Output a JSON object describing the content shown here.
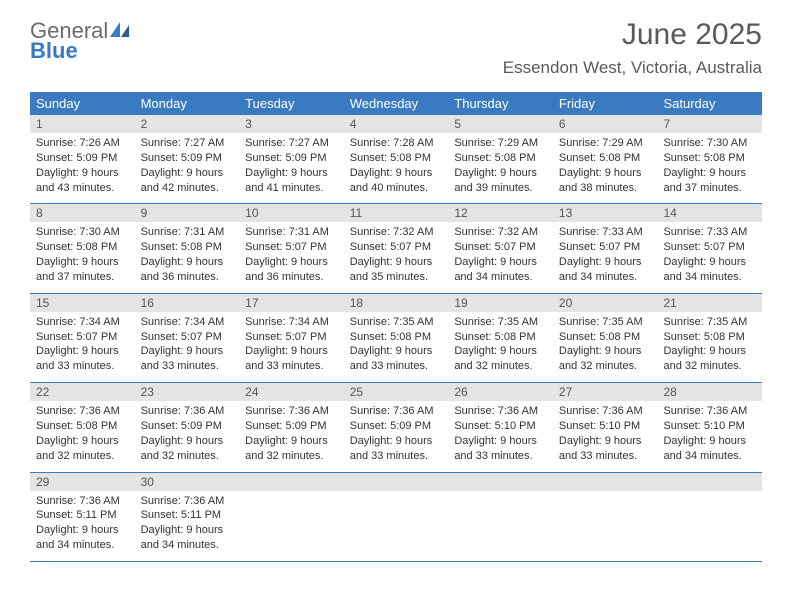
{
  "logo": {
    "text_general": "General",
    "text_blue": "Blue"
  },
  "header": {
    "month_title": "June 2025",
    "location": "Essendon West, Victoria, Australia"
  },
  "colors": {
    "header_bg": "#3a7ac0",
    "daynum_bg": "#e4e4e4",
    "row_border": "#3a7ac0",
    "text": "#333333",
    "muted": "#6b6b6b",
    "logo_blue": "#3a7ac0",
    "background": "#ffffff"
  },
  "typography": {
    "month_title_size": 30,
    "location_size": 17,
    "weekday_size": 13,
    "daynum_size": 12,
    "body_size": 11
  },
  "weekdays": [
    "Sunday",
    "Monday",
    "Tuesday",
    "Wednesday",
    "Thursday",
    "Friday",
    "Saturday"
  ],
  "weeks": [
    {
      "nums": [
        "1",
        "2",
        "3",
        "4",
        "5",
        "6",
        "7"
      ],
      "cells": [
        {
          "sunrise": "Sunrise: 7:26 AM",
          "sunset": "Sunset: 5:09 PM",
          "daylight": "Daylight: 9 hours and 43 minutes."
        },
        {
          "sunrise": "Sunrise: 7:27 AM",
          "sunset": "Sunset: 5:09 PM",
          "daylight": "Daylight: 9 hours and 42 minutes."
        },
        {
          "sunrise": "Sunrise: 7:27 AM",
          "sunset": "Sunset: 5:09 PM",
          "daylight": "Daylight: 9 hours and 41 minutes."
        },
        {
          "sunrise": "Sunrise: 7:28 AM",
          "sunset": "Sunset: 5:08 PM",
          "daylight": "Daylight: 9 hours and 40 minutes."
        },
        {
          "sunrise": "Sunrise: 7:29 AM",
          "sunset": "Sunset: 5:08 PM",
          "daylight": "Daylight: 9 hours and 39 minutes."
        },
        {
          "sunrise": "Sunrise: 7:29 AM",
          "sunset": "Sunset: 5:08 PM",
          "daylight": "Daylight: 9 hours and 38 minutes."
        },
        {
          "sunrise": "Sunrise: 7:30 AM",
          "sunset": "Sunset: 5:08 PM",
          "daylight": "Daylight: 9 hours and 37 minutes."
        }
      ]
    },
    {
      "nums": [
        "8",
        "9",
        "10",
        "11",
        "12",
        "13",
        "14"
      ],
      "cells": [
        {
          "sunrise": "Sunrise: 7:30 AM",
          "sunset": "Sunset: 5:08 PM",
          "daylight": "Daylight: 9 hours and 37 minutes."
        },
        {
          "sunrise": "Sunrise: 7:31 AM",
          "sunset": "Sunset: 5:08 PM",
          "daylight": "Daylight: 9 hours and 36 minutes."
        },
        {
          "sunrise": "Sunrise: 7:31 AM",
          "sunset": "Sunset: 5:07 PM",
          "daylight": "Daylight: 9 hours and 36 minutes."
        },
        {
          "sunrise": "Sunrise: 7:32 AM",
          "sunset": "Sunset: 5:07 PM",
          "daylight": "Daylight: 9 hours and 35 minutes."
        },
        {
          "sunrise": "Sunrise: 7:32 AM",
          "sunset": "Sunset: 5:07 PM",
          "daylight": "Daylight: 9 hours and 34 minutes."
        },
        {
          "sunrise": "Sunrise: 7:33 AM",
          "sunset": "Sunset: 5:07 PM",
          "daylight": "Daylight: 9 hours and 34 minutes."
        },
        {
          "sunrise": "Sunrise: 7:33 AM",
          "sunset": "Sunset: 5:07 PM",
          "daylight": "Daylight: 9 hours and 34 minutes."
        }
      ]
    },
    {
      "nums": [
        "15",
        "16",
        "17",
        "18",
        "19",
        "20",
        "21"
      ],
      "cells": [
        {
          "sunrise": "Sunrise: 7:34 AM",
          "sunset": "Sunset: 5:07 PM",
          "daylight": "Daylight: 9 hours and 33 minutes."
        },
        {
          "sunrise": "Sunrise: 7:34 AM",
          "sunset": "Sunset: 5:07 PM",
          "daylight": "Daylight: 9 hours and 33 minutes."
        },
        {
          "sunrise": "Sunrise: 7:34 AM",
          "sunset": "Sunset: 5:07 PM",
          "daylight": "Daylight: 9 hours and 33 minutes."
        },
        {
          "sunrise": "Sunrise: 7:35 AM",
          "sunset": "Sunset: 5:08 PM",
          "daylight": "Daylight: 9 hours and 33 minutes."
        },
        {
          "sunrise": "Sunrise: 7:35 AM",
          "sunset": "Sunset: 5:08 PM",
          "daylight": "Daylight: 9 hours and 32 minutes."
        },
        {
          "sunrise": "Sunrise: 7:35 AM",
          "sunset": "Sunset: 5:08 PM",
          "daylight": "Daylight: 9 hours and 32 minutes."
        },
        {
          "sunrise": "Sunrise: 7:35 AM",
          "sunset": "Sunset: 5:08 PM",
          "daylight": "Daylight: 9 hours and 32 minutes."
        }
      ]
    },
    {
      "nums": [
        "22",
        "23",
        "24",
        "25",
        "26",
        "27",
        "28"
      ],
      "cells": [
        {
          "sunrise": "Sunrise: 7:36 AM",
          "sunset": "Sunset: 5:08 PM",
          "daylight": "Daylight: 9 hours and 32 minutes."
        },
        {
          "sunrise": "Sunrise: 7:36 AM",
          "sunset": "Sunset: 5:09 PM",
          "daylight": "Daylight: 9 hours and 32 minutes."
        },
        {
          "sunrise": "Sunrise: 7:36 AM",
          "sunset": "Sunset: 5:09 PM",
          "daylight": "Daylight: 9 hours and 32 minutes."
        },
        {
          "sunrise": "Sunrise: 7:36 AM",
          "sunset": "Sunset: 5:09 PM",
          "daylight": "Daylight: 9 hours and 33 minutes."
        },
        {
          "sunrise": "Sunrise: 7:36 AM",
          "sunset": "Sunset: 5:10 PM",
          "daylight": "Daylight: 9 hours and 33 minutes."
        },
        {
          "sunrise": "Sunrise: 7:36 AM",
          "sunset": "Sunset: 5:10 PM",
          "daylight": "Daylight: 9 hours and 33 minutes."
        },
        {
          "sunrise": "Sunrise: 7:36 AM",
          "sunset": "Sunset: 5:10 PM",
          "daylight": "Daylight: 9 hours and 34 minutes."
        }
      ]
    },
    {
      "nums": [
        "29",
        "30",
        "",
        "",
        "",
        "",
        ""
      ],
      "cells": [
        {
          "sunrise": "Sunrise: 7:36 AM",
          "sunset": "Sunset: 5:11 PM",
          "daylight": "Daylight: 9 hours and 34 minutes."
        },
        {
          "sunrise": "Sunrise: 7:36 AM",
          "sunset": "Sunset: 5:11 PM",
          "daylight": "Daylight: 9 hours and 34 minutes."
        },
        {
          "sunrise": "",
          "sunset": "",
          "daylight": ""
        },
        {
          "sunrise": "",
          "sunset": "",
          "daylight": ""
        },
        {
          "sunrise": "",
          "sunset": "",
          "daylight": ""
        },
        {
          "sunrise": "",
          "sunset": "",
          "daylight": ""
        },
        {
          "sunrise": "",
          "sunset": "",
          "daylight": ""
        }
      ]
    }
  ]
}
